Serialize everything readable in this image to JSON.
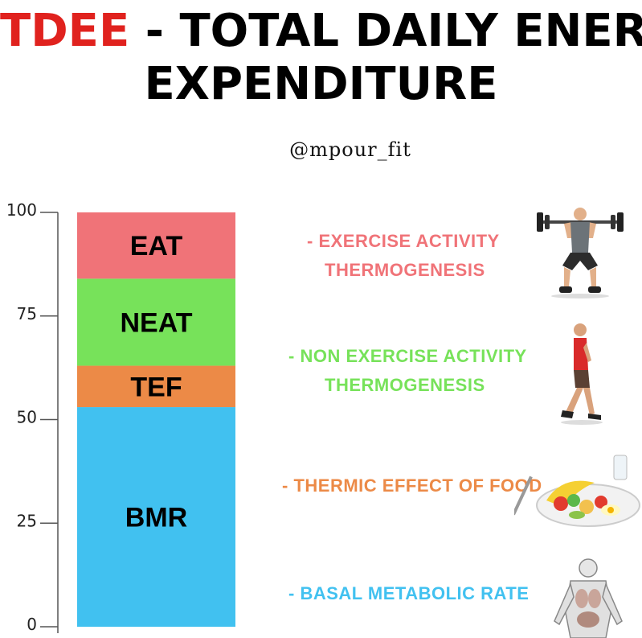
{
  "header": {
    "title_accent": "TDEE",
    "title_rest_line1": " - TOTAL DAILY ENERGY",
    "title_line2": "EXPENDITURE",
    "handle": "@mpour_fit"
  },
  "colors": {
    "accent": "#e0221e",
    "eat": "#f07378",
    "neat": "#77e25a",
    "tef": "#ec8a47",
    "bmr": "#41c1f0"
  },
  "chart_data": {
    "type": "bar",
    "stacked": true,
    "categories": [
      ""
    ],
    "ylim": [
      0,
      100
    ],
    "yticks": [
      "0",
      "25",
      "50",
      "75",
      "100"
    ],
    "grid": false,
    "series": [
      {
        "name": "BMR",
        "values": [
          53
        ],
        "color": "#41c1f0"
      },
      {
        "name": "TEF",
        "values": [
          10
        ],
        "color": "#ec8a47"
      },
      {
        "name": "NEAT",
        "values": [
          21
        ],
        "color": "#77e25a"
      },
      {
        "name": "EAT",
        "values": [
          16
        ],
        "color": "#f07378"
      }
    ]
  },
  "descriptions": [
    {
      "key": "eat",
      "line1": "- EXERCISE ACTIVITY",
      "line2": "THERMOGENESIS",
      "color": "#f07378",
      "icon": "weightlifter-icon"
    },
    {
      "key": "neat",
      "line1": "- NON EXERCISE ACTIVITY",
      "line2": "THERMOGENESIS",
      "color": "#77e25a",
      "icon": "walking-person-icon"
    },
    {
      "key": "tef",
      "line1": "- THERMIC EFFECT OF FOOD",
      "line2": "",
      "color": "#ec8a47",
      "icon": "food-plate-icon"
    },
    {
      "key": "bmr",
      "line1": "- BASAL METABOLIC RATE",
      "line2": "",
      "color": "#41c1f0",
      "icon": "anatomy-body-icon"
    }
  ]
}
